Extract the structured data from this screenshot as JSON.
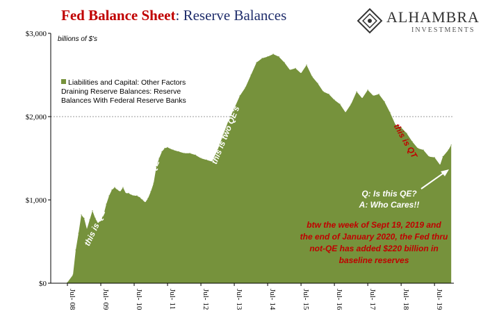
{
  "header": {
    "title_bold": "Fed Balance Sheet",
    "title_rest": ": Reserve Balances"
  },
  "logo": {
    "name": "ALHAMBRA",
    "tagline": "INVESTMENTS",
    "icon": "ornamental-diamond-icon"
  },
  "chart_data": {
    "type": "area",
    "title": "Fed Balance Sheet: Reserve Balances",
    "unit_label": "billions of $'s",
    "ylim": [
      0,
      3000
    ],
    "yticks": [
      0,
      1000,
      2000,
      3000
    ],
    "ytick_labels": [
      "$0",
      "$1,000",
      "$2,000",
      "$3,000"
    ],
    "xticks": [
      {
        "year": 2008,
        "top": "Jul-",
        "bottom": "08"
      },
      {
        "year": 2009,
        "top": "Jul-",
        "bottom": "09"
      },
      {
        "year": 2010,
        "top": "Jul-",
        "bottom": "10"
      },
      {
        "year": 2011,
        "top": "Jul-",
        "bottom": "11"
      },
      {
        "year": 2012,
        "top": "Jul-",
        "bottom": "12"
      },
      {
        "year": 2013,
        "top": "Jul-",
        "bottom": "13"
      },
      {
        "year": 2014,
        "top": "Jul-",
        "bottom": "14"
      },
      {
        "year": 2015,
        "top": "Jul-",
        "bottom": "15"
      },
      {
        "year": 2016,
        "top": "Jul-",
        "bottom": "16"
      },
      {
        "year": 2017,
        "top": "Jul-",
        "bottom": "17"
      },
      {
        "year": 2018,
        "top": "Jul-",
        "bottom": "18"
      },
      {
        "year": 2019,
        "top": "Jul-",
        "bottom": "19"
      }
    ],
    "grid": "horizontal dashed at 2000",
    "legend_position": "top-left",
    "series": [
      {
        "name": "Liabilities and Capital: Other Factors Draining Reserve Balances: Reserve Balances With Federal Reserve Banks",
        "color": "#76923c",
        "points": [
          [
            "2008-07",
            10
          ],
          [
            "2008-09",
            100
          ],
          [
            "2008-10",
            400
          ],
          [
            "2008-11",
            600
          ],
          [
            "2008-12",
            820
          ],
          [
            "2009-01",
            780
          ],
          [
            "2009-02",
            650
          ],
          [
            "2009-03",
            760
          ],
          [
            "2009-04",
            870
          ],
          [
            "2009-05",
            780
          ],
          [
            "2009-06",
            720
          ],
          [
            "2009-07",
            760
          ],
          [
            "2009-08",
            820
          ],
          [
            "2009-09",
            950
          ],
          [
            "2009-10",
            1050
          ],
          [
            "2009-11",
            1120
          ],
          [
            "2009-12",
            1150
          ],
          [
            "2010-01",
            1120
          ],
          [
            "2010-02",
            1100
          ],
          [
            "2010-03",
            1150
          ],
          [
            "2010-04",
            1080
          ],
          [
            "2010-05",
            1080
          ],
          [
            "2010-06",
            1060
          ],
          [
            "2010-07",
            1050
          ],
          [
            "2010-08",
            1050
          ],
          [
            "2010-09",
            1030
          ],
          [
            "2010-10",
            1000
          ],
          [
            "2010-11",
            970
          ],
          [
            "2010-12",
            1020
          ],
          [
            "2011-01",
            1100
          ],
          [
            "2011-02",
            1200
          ],
          [
            "2011-03",
            1400
          ],
          [
            "2011-04",
            1500
          ],
          [
            "2011-05",
            1580
          ],
          [
            "2011-06",
            1620
          ],
          [
            "2011-07",
            1630
          ],
          [
            "2011-09",
            1600
          ],
          [
            "2011-11",
            1580
          ],
          [
            "2012-01",
            1560
          ],
          [
            "2012-03",
            1560
          ],
          [
            "2012-05",
            1540
          ],
          [
            "2012-07",
            1500
          ],
          [
            "2012-09",
            1480
          ],
          [
            "2012-11",
            1460
          ],
          [
            "2013-01",
            1600
          ],
          [
            "2013-03",
            1780
          ],
          [
            "2013-05",
            1960
          ],
          [
            "2013-07",
            2100
          ],
          [
            "2013-09",
            2250
          ],
          [
            "2013-11",
            2350
          ],
          [
            "2014-01",
            2500
          ],
          [
            "2014-03",
            2650
          ],
          [
            "2014-05",
            2700
          ],
          [
            "2014-07",
            2720
          ],
          [
            "2014-09",
            2750
          ],
          [
            "2014-11",
            2720
          ],
          [
            "2015-01",
            2650
          ],
          [
            "2015-03",
            2560
          ],
          [
            "2015-05",
            2580
          ],
          [
            "2015-07",
            2520
          ],
          [
            "2015-09",
            2620
          ],
          [
            "2015-11",
            2480
          ],
          [
            "2016-01",
            2400
          ],
          [
            "2016-03",
            2300
          ],
          [
            "2016-05",
            2270
          ],
          [
            "2016-07",
            2200
          ],
          [
            "2016-09",
            2150
          ],
          [
            "2016-11",
            2050
          ],
          [
            "2017-01",
            2150
          ],
          [
            "2017-03",
            2300
          ],
          [
            "2017-05",
            2220
          ],
          [
            "2017-07",
            2320
          ],
          [
            "2017-09",
            2250
          ],
          [
            "2017-11",
            2270
          ],
          [
            "2018-01",
            2180
          ],
          [
            "2018-03",
            2050
          ],
          [
            "2018-05",
            1900
          ],
          [
            "2018-07",
            1870
          ],
          [
            "2018-09",
            1800
          ],
          [
            "2018-11",
            1700
          ],
          [
            "2019-01",
            1620
          ],
          [
            "2019-03",
            1600
          ],
          [
            "2019-05",
            1520
          ],
          [
            "2019-07",
            1510
          ],
          [
            "2019-09",
            1420
          ],
          [
            "2019-10",
            1520
          ],
          [
            "2019-12",
            1600
          ],
          [
            "2020-01",
            1660
          ]
        ]
      }
    ],
    "annotations": [
      {
        "text": "this is QE",
        "color": "white",
        "anchor": "2009-07"
      },
      {
        "text": "this is QE",
        "color": "white",
        "anchor": "2010-10"
      },
      {
        "text": "this is two QE's",
        "color": "white",
        "anchor": "2013-03"
      },
      {
        "text": "this is QT",
        "color": "red",
        "anchor": "2018-01"
      },
      {
        "text": "Q: Is this QE?",
        "color": "white",
        "anchor": "2018-11"
      },
      {
        "text": "A: Who Cares!!",
        "color": "white",
        "anchor": "2018-11"
      }
    ],
    "note_lines": [
      "btw the week of Sept 19, 2019 and",
      "the end of January 2020, the Fed thru",
      "not-QE has added $220 billion  in",
      "baseline  reserves"
    ]
  }
}
